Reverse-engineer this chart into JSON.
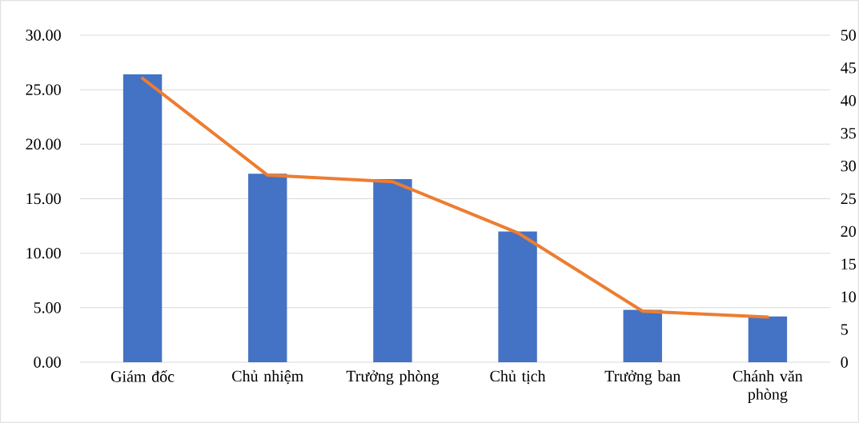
{
  "chart_data": {
    "type": "bar",
    "categories": [
      "Giám đốc",
      "Chủ nhiệm",
      "Trưởng phòng",
      "Chủ tịch",
      "Trưởng ban",
      "Chánh văn phòng"
    ],
    "series": [
      {
        "color": "#4472c4",
        "values": [
          26.4,
          17.3,
          16.8,
          12.0,
          4.8,
          4.2
        ]
      },
      {
        "type": "line",
        "axis": "y2",
        "color": "#ed7d31",
        "values": [
          43.4,
          28.6,
          27.6,
          19.8,
          7.8,
          6.9
        ]
      }
    ],
    "ylim": [
      0,
      30
    ],
    "yticks": [
      {
        "value": 0,
        "label": "0.00"
      },
      {
        "value": 5,
        "label": "5.00"
      },
      {
        "value": 10,
        "label": "10.00"
      },
      {
        "value": 15,
        "label": "15.00"
      },
      {
        "value": 20,
        "label": "20.00"
      },
      {
        "value": 25,
        "label": "25.00"
      },
      {
        "value": 30,
        "label": "30.00"
      }
    ],
    "y2lim": [
      0,
      50
    ],
    "y2ticks": [
      0,
      5,
      10,
      15,
      20,
      25,
      30,
      35,
      40,
      45,
      50
    ],
    "grid": "y",
    "legend": false,
    "marker": "none",
    "line_style": "solid"
  }
}
